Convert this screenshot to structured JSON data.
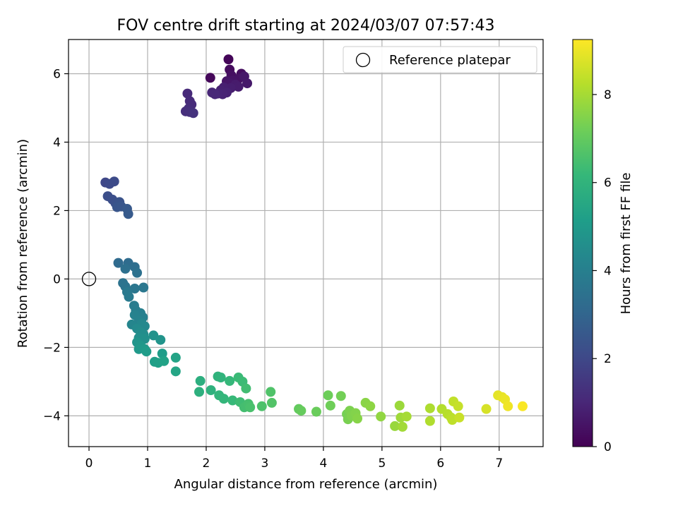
{
  "chart_data": {
    "type": "scatter",
    "title": "FOV centre drift starting at 2024/03/07 07:57:43",
    "xlabel": "Angular distance from reference (arcmin)",
    "ylabel": "Rotation from reference (arcmin)",
    "xlim": [
      -0.35,
      7.75
    ],
    "ylim": [
      -4.9,
      7.0
    ],
    "xticks": [
      0,
      1,
      2,
      3,
      4,
      5,
      6,
      7
    ],
    "xtick_labels": [
      "0",
      "1",
      "2",
      "3",
      "4",
      "5",
      "6",
      "7"
    ],
    "yticks": [
      -4,
      -2,
      0,
      2,
      4,
      6
    ],
    "ytick_labels": [
      "−4",
      "−2",
      "0",
      "2",
      "4",
      "6"
    ],
    "grid": true,
    "legend": {
      "placement": "top-right",
      "entries": [
        {
          "label": "Reference platepar",
          "marker": "open-circle"
        }
      ]
    },
    "reference_point": {
      "x": 0,
      "y": 0
    },
    "colorbar": {
      "label": "Hours from first FF file",
      "colormap": "viridis",
      "range": [
        0,
        9.25
      ],
      "ticks": [
        0,
        2,
        4,
        6,
        8
      ],
      "tick_labels": [
        "0",
        "2",
        "4",
        "6",
        "8"
      ]
    },
    "points": [
      {
        "x": 2.38,
        "y": 6.42,
        "t": 0.1
      },
      {
        "x": 2.07,
        "y": 5.88,
        "t": 0.18
      },
      {
        "x": 2.4,
        "y": 6.12,
        "t": 0.26
      },
      {
        "x": 2.6,
        "y": 6.0,
        "t": 0.32
      },
      {
        "x": 2.43,
        "y": 5.95,
        "t": 0.38
      },
      {
        "x": 2.55,
        "y": 5.85,
        "t": 0.44
      },
      {
        "x": 2.45,
        "y": 5.8,
        "t": 0.48
      },
      {
        "x": 2.35,
        "y": 5.78,
        "t": 0.52
      },
      {
        "x": 2.4,
        "y": 5.72,
        "t": 0.56
      },
      {
        "x": 2.65,
        "y": 5.92,
        "t": 0.6
      },
      {
        "x": 2.7,
        "y": 5.72,
        "t": 0.64
      },
      {
        "x": 2.5,
        "y": 5.68,
        "t": 0.68
      },
      {
        "x": 2.55,
        "y": 5.62,
        "t": 0.72
      },
      {
        "x": 2.42,
        "y": 5.58,
        "t": 0.76
      },
      {
        "x": 2.3,
        "y": 5.6,
        "t": 0.8
      },
      {
        "x": 2.25,
        "y": 5.52,
        "t": 0.84
      },
      {
        "x": 2.35,
        "y": 5.45,
        "t": 0.88
      },
      {
        "x": 2.28,
        "y": 5.4,
        "t": 0.92
      },
      {
        "x": 2.2,
        "y": 5.42,
        "t": 0.96
      },
      {
        "x": 2.1,
        "y": 5.45,
        "t": 1.0
      },
      {
        "x": 2.15,
        "y": 5.4,
        "t": 1.04
      },
      {
        "x": 1.68,
        "y": 5.42,
        "t": 1.08
      },
      {
        "x": 1.72,
        "y": 5.2,
        "t": 1.12
      },
      {
        "x": 1.75,
        "y": 5.1,
        "t": 1.16
      },
      {
        "x": 1.7,
        "y": 4.98,
        "t": 1.2
      },
      {
        "x": 1.65,
        "y": 4.9,
        "t": 1.24
      },
      {
        "x": 1.72,
        "y": 4.88,
        "t": 1.28
      },
      {
        "x": 1.78,
        "y": 4.85,
        "t": 1.32
      },
      {
        "x": 0.28,
        "y": 2.82,
        "t": 2.0
      },
      {
        "x": 0.35,
        "y": 2.78,
        "t": 2.05
      },
      {
        "x": 0.43,
        "y": 2.85,
        "t": 2.1
      },
      {
        "x": 0.32,
        "y": 2.42,
        "t": 2.18
      },
      {
        "x": 0.4,
        "y": 2.32,
        "t": 2.24
      },
      {
        "x": 0.45,
        "y": 2.22,
        "t": 2.3
      },
      {
        "x": 0.52,
        "y": 2.25,
        "t": 2.36
      },
      {
        "x": 0.48,
        "y": 2.1,
        "t": 2.42
      },
      {
        "x": 0.55,
        "y": 2.12,
        "t": 2.48
      },
      {
        "x": 0.65,
        "y": 2.05,
        "t": 2.56
      },
      {
        "x": 0.67,
        "y": 1.9,
        "t": 2.62
      },
      {
        "x": 0.5,
        "y": 0.47,
        "t": 3.2
      },
      {
        "x": 0.67,
        "y": 0.47,
        "t": 3.26
      },
      {
        "x": 0.78,
        "y": 0.35,
        "t": 3.32
      },
      {
        "x": 0.62,
        "y": 0.3,
        "t": 3.38
      },
      {
        "x": 0.82,
        "y": 0.18,
        "t": 3.44
      },
      {
        "x": 0.58,
        "y": -0.12,
        "t": 3.5
      },
      {
        "x": 0.62,
        "y": -0.22,
        "t": 3.56
      },
      {
        "x": 0.78,
        "y": -0.28,
        "t": 3.62
      },
      {
        "x": 0.93,
        "y": -0.25,
        "t": 3.68
      },
      {
        "x": 0.65,
        "y": -0.38,
        "t": 3.74
      },
      {
        "x": 0.68,
        "y": -0.52,
        "t": 3.8
      },
      {
        "x": 0.77,
        "y": -0.78,
        "t": 3.86
      },
      {
        "x": 0.8,
        "y": -0.92,
        "t": 3.92
      },
      {
        "x": 0.88,
        "y": -1.0,
        "t": 3.98
      },
      {
        "x": 0.92,
        "y": -1.12,
        "t": 4.04
      },
      {
        "x": 0.78,
        "y": -1.05,
        "t": 4.1
      },
      {
        "x": 0.85,
        "y": -1.22,
        "t": 4.16
      },
      {
        "x": 0.73,
        "y": -1.33,
        "t": 4.22
      },
      {
        "x": 0.9,
        "y": -1.3,
        "t": 4.28
      },
      {
        "x": 0.95,
        "y": -1.38,
        "t": 4.34
      },
      {
        "x": 0.82,
        "y": -1.45,
        "t": 4.4
      },
      {
        "x": 0.88,
        "y": -1.55,
        "t": 4.46
      },
      {
        "x": 0.93,
        "y": -1.62,
        "t": 4.52
      },
      {
        "x": 0.85,
        "y": -1.72,
        "t": 4.58
      },
      {
        "x": 0.95,
        "y": -1.75,
        "t": 4.64
      },
      {
        "x": 1.1,
        "y": -1.65,
        "t": 4.7
      },
      {
        "x": 1.22,
        "y": -1.78,
        "t": 4.76
      },
      {
        "x": 0.82,
        "y": -1.85,
        "t": 4.82
      },
      {
        "x": 0.88,
        "y": -1.95,
        "t": 4.88
      },
      {
        "x": 0.85,
        "y": -2.05,
        "t": 4.94
      },
      {
        "x": 0.95,
        "y": -2.05,
        "t": 5.0
      },
      {
        "x": 0.98,
        "y": -2.12,
        "t": 5.06
      },
      {
        "x": 1.25,
        "y": -2.18,
        "t": 5.12
      },
      {
        "x": 1.12,
        "y": -2.42,
        "t": 5.18
      },
      {
        "x": 1.18,
        "y": -2.45,
        "t": 5.24
      },
      {
        "x": 1.28,
        "y": -2.4,
        "t": 5.3
      },
      {
        "x": 1.48,
        "y": -2.3,
        "t": 5.36
      },
      {
        "x": 1.48,
        "y": -2.7,
        "t": 5.42
      },
      {
        "x": 1.9,
        "y": -2.98,
        "t": 5.8
      },
      {
        "x": 1.88,
        "y": -3.3,
        "t": 5.85
      },
      {
        "x": 2.08,
        "y": -3.25,
        "t": 5.9
      },
      {
        "x": 2.2,
        "y": -2.85,
        "t": 5.95
      },
      {
        "x": 2.25,
        "y": -2.88,
        "t": 6.0
      },
      {
        "x": 2.22,
        "y": -3.4,
        "t": 6.05
      },
      {
        "x": 2.3,
        "y": -3.5,
        "t": 6.1
      },
      {
        "x": 2.4,
        "y": -2.98,
        "t": 6.15
      },
      {
        "x": 2.45,
        "y": -3.55,
        "t": 6.2
      },
      {
        "x": 2.55,
        "y": -2.88,
        "t": 6.25
      },
      {
        "x": 2.62,
        "y": -3.0,
        "t": 6.3
      },
      {
        "x": 2.58,
        "y": -3.6,
        "t": 6.35
      },
      {
        "x": 2.68,
        "y": -3.2,
        "t": 6.4
      },
      {
        "x": 2.65,
        "y": -3.75,
        "t": 6.45
      },
      {
        "x": 2.72,
        "y": -3.65,
        "t": 6.5
      },
      {
        "x": 2.75,
        "y": -3.75,
        "t": 6.55
      },
      {
        "x": 2.95,
        "y": -3.72,
        "t": 6.6
      },
      {
        "x": 3.1,
        "y": -3.3,
        "t": 6.65
      },
      {
        "x": 3.12,
        "y": -3.62,
        "t": 6.7
      },
      {
        "x": 3.58,
        "y": -3.8,
        "t": 7.0
      },
      {
        "x": 3.62,
        "y": -3.85,
        "t": 7.05
      },
      {
        "x": 3.88,
        "y": -3.88,
        "t": 7.1
      },
      {
        "x": 4.08,
        "y": -3.4,
        "t": 7.15
      },
      {
        "x": 4.12,
        "y": -3.7,
        "t": 7.2
      },
      {
        "x": 4.3,
        "y": -3.42,
        "t": 7.25
      },
      {
        "x": 4.4,
        "y": -3.95,
        "t": 7.3
      },
      {
        "x": 4.42,
        "y": -4.1,
        "t": 7.35
      },
      {
        "x": 4.45,
        "y": -3.85,
        "t": 7.4
      },
      {
        "x": 4.48,
        "y": -4.0,
        "t": 7.45
      },
      {
        "x": 4.55,
        "y": -3.92,
        "t": 7.5
      },
      {
        "x": 4.58,
        "y": -4.08,
        "t": 7.55
      },
      {
        "x": 4.72,
        "y": -3.62,
        "t": 7.6
      },
      {
        "x": 4.8,
        "y": -3.72,
        "t": 7.65
      },
      {
        "x": 4.98,
        "y": -4.02,
        "t": 7.7
      },
      {
        "x": 5.22,
        "y": -4.3,
        "t": 7.8
      },
      {
        "x": 5.3,
        "y": -3.7,
        "t": 7.85
      },
      {
        "x": 5.32,
        "y": -4.05,
        "t": 7.9
      },
      {
        "x": 5.35,
        "y": -4.32,
        "t": 7.95
      },
      {
        "x": 5.42,
        "y": -4.02,
        "t": 8.0
      },
      {
        "x": 5.82,
        "y": -3.78,
        "t": 8.1
      },
      {
        "x": 5.82,
        "y": -4.15,
        "t": 8.15
      },
      {
        "x": 6.02,
        "y": -3.8,
        "t": 8.2
      },
      {
        "x": 6.12,
        "y": -3.95,
        "t": 8.25
      },
      {
        "x": 6.18,
        "y": -4.05,
        "t": 8.3
      },
      {
        "x": 6.2,
        "y": -4.12,
        "t": 8.35
      },
      {
        "x": 6.22,
        "y": -3.58,
        "t": 8.4
      },
      {
        "x": 6.3,
        "y": -3.72,
        "t": 8.45
      },
      {
        "x": 6.32,
        "y": -4.05,
        "t": 8.5
      },
      {
        "x": 6.78,
        "y": -3.8,
        "t": 8.7
      },
      {
        "x": 6.98,
        "y": -3.4,
        "t": 8.9
      },
      {
        "x": 7.05,
        "y": -3.45,
        "t": 8.95
      },
      {
        "x": 7.1,
        "y": -3.52,
        "t": 9.0
      },
      {
        "x": 7.15,
        "y": -3.72,
        "t": 9.05
      },
      {
        "x": 7.4,
        "y": -3.72,
        "t": 9.2
      }
    ]
  }
}
